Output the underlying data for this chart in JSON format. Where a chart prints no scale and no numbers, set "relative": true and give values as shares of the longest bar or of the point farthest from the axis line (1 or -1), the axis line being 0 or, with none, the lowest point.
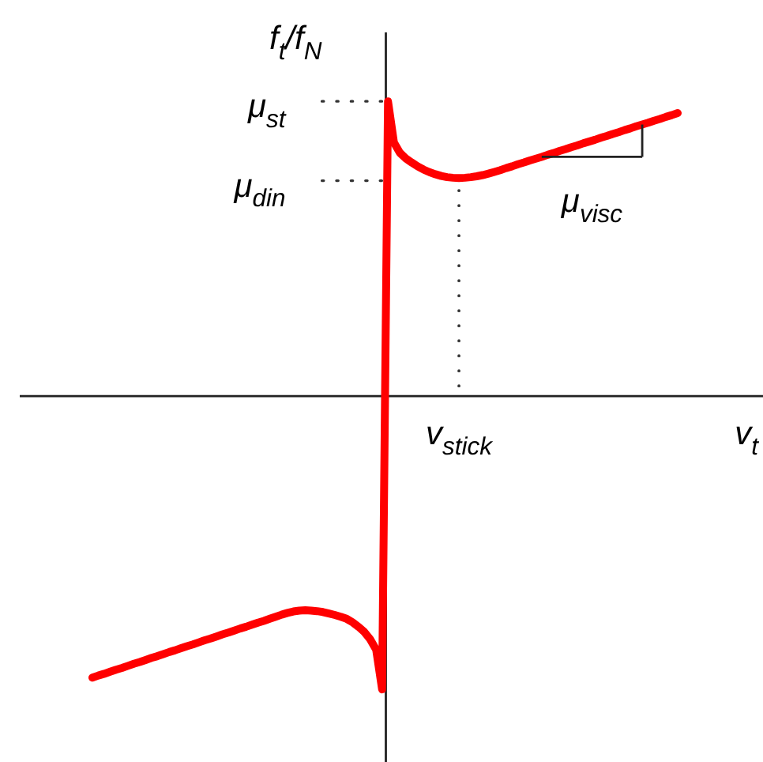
{
  "chart_data": {
    "type": "line",
    "relative": true,
    "xlabel": "v$_{t}$",
    "ylabel": "f$_{t}$/f$_{N}$",
    "line_style": "solid",
    "categories": [
      null,
      null,
      null,
      null,
      null,
      null,
      null,
      null,
      null,
      null,
      null,
      null,
      null,
      null,
      null,
      null,
      null,
      null,
      null,
      null,
      null,
      null,
      null,
      null,
      null,
      null,
      null,
      null,
      null,
      null,
      null,
      null,
      null,
      null,
      null,
      null,
      null,
      null,
      null,
      null,
      null,
      null,
      null,
      null,
      null,
      null,
      null,
      null,
      null,
      null,
      null,
      null,
      null,
      null,
      null,
      null,
      null,
      null,
      null,
      null,
      null,
      null,
      null,
      null,
      null,
      null,
      null,
      null,
      null,
      null,
      null,
      null,
      null,
      null,
      null,
      null,
      null,
      null,
      null,
      null,
      null,
      null,
      null,
      null,
      null,
      null,
      null,
      null,
      null,
      null,
      null,
      null,
      null,
      null,
      null,
      null,
      null,
      null,
      null,
      null
    ],
    "series": [
      {
        "color": "#ff0000",
        "values": [
          -0.96,
          -0.953,
          -0.947,
          -0.94,
          -0.933,
          -0.927,
          -0.92,
          -0.913,
          -0.907,
          -0.9,
          -0.893,
          -0.887,
          -0.88,
          -0.873,
          -0.867,
          -0.86,
          -0.853,
          -0.847,
          -0.84,
          -0.833,
          -0.827,
          -0.82,
          -0.813,
          -0.807,
          -0.8,
          -0.793,
          -0.787,
          -0.78,
          -0.773,
          -0.767,
          -0.76,
          -0.753,
          -0.746,
          -0.74,
          -0.735,
          -0.732,
          -0.731,
          -0.732,
          -0.734,
          -0.737,
          -0.742,
          -0.747,
          -0.753,
          -0.76,
          -0.772,
          -0.787,
          -0.805,
          -0.83,
          -0.865,
          -1.0,
          1.0,
          0.86,
          0.825,
          0.806,
          0.792,
          0.779,
          0.768,
          0.759,
          0.752,
          0.746,
          0.742,
          0.74,
          0.739,
          0.74,
          0.742,
          0.745,
          0.749,
          0.754,
          0.76,
          0.766,
          0.773,
          0.779,
          0.786,
          0.792,
          0.799,
          0.805,
          0.811,
          0.818,
          0.824,
          0.831,
          0.837,
          0.844,
          0.85,
          0.857,
          0.863,
          0.869,
          0.876,
          0.882,
          0.889,
          0.895,
          0.902,
          0.908,
          0.915,
          0.921,
          0.927,
          0.934,
          0.94,
          0.947,
          0.953,
          0.96
        ]
      }
    ],
    "ref_lines": [
      {
        "axis": "y",
        "value": 1.0,
        "label": "μ$_{st}$",
        "line_style": "dotted"
      },
      {
        "axis": "y",
        "value": 0.73,
        "label": "μ$_{din}$",
        "line_style": "dotted"
      }
    ],
    "annotations": [
      "v$_{stick}$",
      "μ$_{visc}$"
    ]
  }
}
